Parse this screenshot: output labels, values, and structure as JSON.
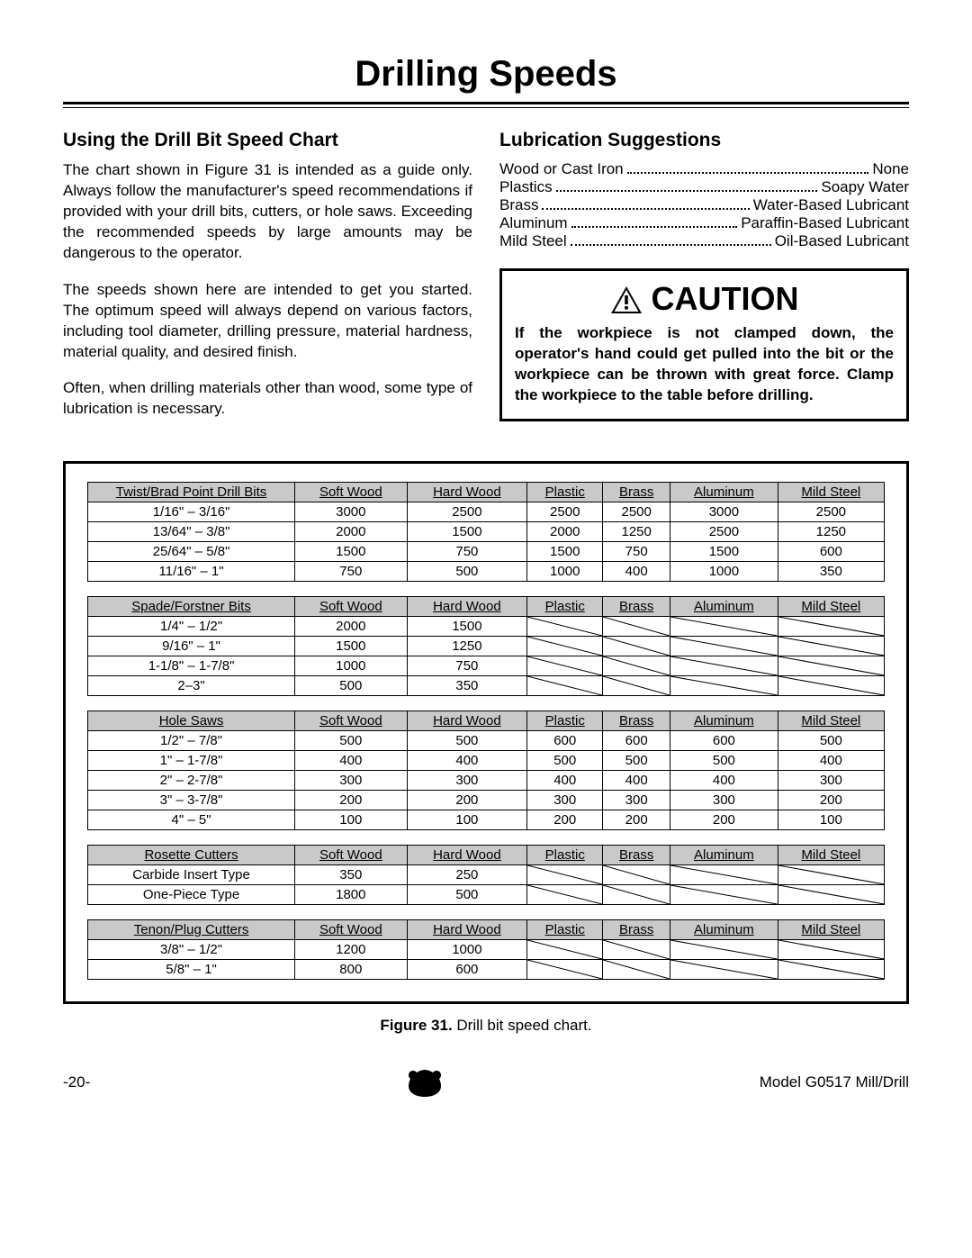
{
  "page_title": "Drilling Speeds",
  "left": {
    "heading": "Using the Drill Bit Speed Chart",
    "p1": "The chart shown in Figure 31 is intended as a guide only. Always follow the manufacturer's speed recommendations if provided with your drill bits, cutters, or hole saws. Exceeding the recommended speeds by large amounts may be dangerous to the operator.",
    "p2": "The speeds shown here are intended to get you started. The optimum speed will always depend on various factors, including tool diameter, drilling pressure, material hardness, material quality, and desired finish.",
    "p3": "Often, when drilling materials other than wood, some type of lubrication is necessary."
  },
  "right": {
    "heading": "Lubrication Suggestions",
    "lube": [
      {
        "mat": "Wood or Cast Iron",
        "rec": "None"
      },
      {
        "mat": "Plastics",
        "rec": "Soapy Water"
      },
      {
        "mat": "Brass",
        "rec": "Water-Based Lubricant"
      },
      {
        "mat": "Aluminum",
        "rec": "Paraffin-Based Lubricant"
      },
      {
        "mat": "Mild Steel",
        "rec": "Oil-Based Lubricant"
      }
    ],
    "caution_label": "CAUTION",
    "caution_text": "If the workpiece is not clamped down, the operator's hand could get pulled into the bit or the workpiece can be thrown with great force. Clamp the workpiece to the table before drilling."
  },
  "tables": [
    {
      "title": "Twist/Brad Point Drill Bits",
      "cols": [
        "Soft Wood",
        "Hard Wood",
        "Plastic",
        "Brass",
        "Aluminum",
        "Mild Steel"
      ],
      "rows": [
        {
          "label": "1/16\" – 3/16\"",
          "v": [
            "3000",
            "2500",
            "2500",
            "2500",
            "3000",
            "2500"
          ]
        },
        {
          "label": "13/64\" – 3/8\"",
          "v": [
            "2000",
            "1500",
            "2000",
            "1250",
            "2500",
            "1250"
          ]
        },
        {
          "label": "25/64\" – 5/8\"",
          "v": [
            "1500",
            "750",
            "1500",
            "750",
            "1500",
            "600"
          ]
        },
        {
          "label": "11/16\" – 1\"",
          "v": [
            "750",
            "500",
            "1000",
            "400",
            "1000",
            "350"
          ]
        }
      ]
    },
    {
      "title": "Spade/Forstner Bits",
      "cols": [
        "Soft Wood",
        "Hard Wood",
        "Plastic",
        "Brass",
        "Aluminum",
        "Mild Steel"
      ],
      "rows": [
        {
          "label": "1/4\" – 1/2\"",
          "v": [
            "2000",
            "1500",
            null,
            null,
            null,
            null
          ]
        },
        {
          "label": "9/16\" – 1\"",
          "v": [
            "1500",
            "1250",
            null,
            null,
            null,
            null
          ]
        },
        {
          "label": "1-1/8\" – 1-7/8\"",
          "v": [
            "1000",
            "750",
            null,
            null,
            null,
            null
          ]
        },
        {
          "label": "2–3\"",
          "v": [
            "500",
            "350",
            null,
            null,
            null,
            null
          ]
        }
      ]
    },
    {
      "title": "Hole Saws",
      "cols": [
        "Soft Wood",
        "Hard Wood",
        "Plastic",
        "Brass",
        "Aluminum",
        "Mild Steel"
      ],
      "rows": [
        {
          "label": "1/2\" – 7/8\"",
          "v": [
            "500",
            "500",
            "600",
            "600",
            "600",
            "500"
          ]
        },
        {
          "label": "1\" – 1-7/8\"",
          "v": [
            "400",
            "400",
            "500",
            "500",
            "500",
            "400"
          ]
        },
        {
          "label": "2\" – 2-7/8\"",
          "v": [
            "300",
            "300",
            "400",
            "400",
            "400",
            "300"
          ]
        },
        {
          "label": "3\" – 3-7/8\"",
          "v": [
            "200",
            "200",
            "300",
            "300",
            "300",
            "200"
          ]
        },
        {
          "label": "4\" – 5\"",
          "v": [
            "100",
            "100",
            "200",
            "200",
            "200",
            "100"
          ]
        }
      ]
    },
    {
      "title": "Rosette Cutters",
      "cols": [
        "Soft Wood",
        "Hard Wood",
        "Plastic",
        "Brass",
        "Aluminum",
        "Mild Steel"
      ],
      "rows": [
        {
          "label": "Carbide Insert Type",
          "v": [
            "350",
            "250",
            null,
            null,
            null,
            null
          ]
        },
        {
          "label": "One-Piece Type",
          "v": [
            "1800",
            "500",
            null,
            null,
            null,
            null
          ]
        }
      ]
    },
    {
      "title": "Tenon/Plug Cutters",
      "cols": [
        "Soft Wood",
        "Hard Wood",
        "Plastic",
        "Brass",
        "Aluminum",
        "Mild Steel"
      ],
      "rows": [
        {
          "label": "3/8\" – 1/2\"",
          "v": [
            "1200",
            "1000",
            null,
            null,
            null,
            null
          ]
        },
        {
          "label": "5/8\" – 1\"",
          "v": [
            "800",
            "600",
            null,
            null,
            null,
            null
          ]
        }
      ]
    }
  ],
  "figure_label": "Figure 31.",
  "figure_text": " Drill bit speed chart.",
  "footer": {
    "page": "-20-",
    "model": "Model G0517 Mill/Drill"
  }
}
